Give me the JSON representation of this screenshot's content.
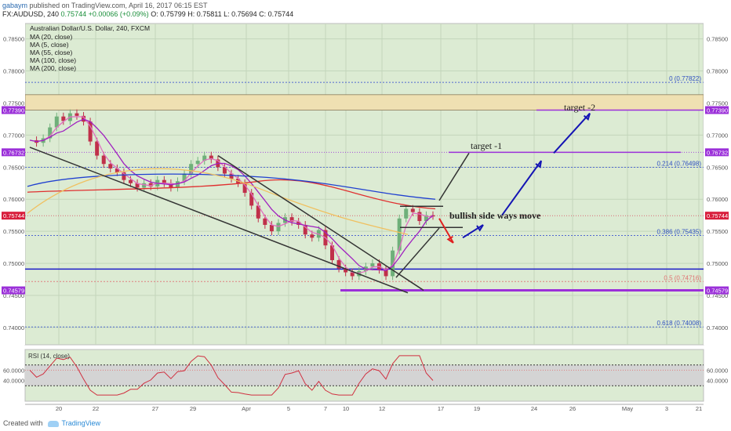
{
  "header": {
    "publisher": "gabaym",
    "published_text": "published on TradingView.com, April 16, 2017 06:15 EST",
    "ticker_line_prefix": "FX:AUDUSD, 240",
    "last_price": "0.75744",
    "change": "+0.00066 (+0.09%)",
    "ohlc": "O: 0.75799 H: 0.75811 L: 0.75694 C: 0.75744"
  },
  "legend": {
    "title": "Australian Dollar/U.S. Dollar, 240, FXCM",
    "items": [
      "MA (20, close)",
      "MA (5, close)",
      "MA (55, close)",
      "MA (100, close)",
      "MA (200, close)"
    ]
  },
  "colors": {
    "background": "#dcebd3",
    "up_candle": "#6fb07a",
    "down_candle": "#c0304a",
    "ma_red": "#e03030",
    "ma_blue": "#2040d0",
    "ma_orange": "#f0c060",
    "ma_purple": "#a020c0",
    "ma_pink": "#e070c0",
    "support_line": "#1c1cc8",
    "purple_level": "#9b30d9",
    "annotation_arrow": "#1414b4",
    "red_arrow": "#e02020",
    "price_tag": "#d81e3c",
    "rsi_line": "#d03040",
    "rsi_band": "#d4d4d4"
  },
  "chart_data": {
    "type": "candlestick",
    "symbol": "FX:AUDUSD",
    "timeframe": "240",
    "ylim": [
      0.7373,
      0.7874
    ],
    "y_ticks": [
      "0.78500",
      "0.78000",
      "0.77500",
      "0.77000",
      "0.76500",
      "0.76000",
      "0.75500",
      "0.75000",
      "0.74500",
      "0.74000"
    ],
    "x_ticks": [
      "20",
      "22",
      "27",
      "29",
      "Apr",
      "5",
      "7",
      "10",
      "12",
      "17",
      "19",
      "24",
      "26",
      "May",
      "3",
      "21"
    ],
    "last_price": "0.75744",
    "price_tags": [
      {
        "value": 0.7739,
        "label": "0.77390",
        "type": "purple"
      },
      {
        "value": 0.76732,
        "label": "0.76732",
        "type": "purple"
      },
      {
        "value": 0.75744,
        "label": "0.75744",
        "type": "red"
      },
      {
        "value": 0.74579,
        "label": "0.74579",
        "type": "purple"
      }
    ],
    "fib_levels": [
      {
        "value": 0.77822,
        "label": "0 (0.77822)"
      },
      {
        "value": 0.76498,
        "label": "0.214 (0.76498)"
      },
      {
        "value": 0.75435,
        "label": "0.386 (0.75435)"
      },
      {
        "value": 0.74716,
        "label": "0.5 (0.74716)"
      },
      {
        "value": 0.74008,
        "label": "0.618 (0.74008)"
      }
    ],
    "resistance_band": [
      0.7739,
      0.7763
    ],
    "support_line": 0.7491,
    "purple_level": 0.74579,
    "annotations": [
      "target -2",
      "target -1",
      "bullish side ways move"
    ],
    "candles_close_path": [
      0.7692,
      0.7688,
      0.7695,
      0.7712,
      0.7729,
      0.7722,
      0.7734,
      0.773,
      0.7721,
      0.769,
      0.7668,
      0.7655,
      0.7648,
      0.7642,
      0.763,
      0.7625,
      0.7618,
      0.7625,
      0.762,
      0.763,
      0.7625,
      0.7618,
      0.7628,
      0.764,
      0.7655,
      0.766,
      0.7668,
      0.7662,
      0.765,
      0.764,
      0.7632,
      0.7625,
      0.761,
      0.759,
      0.757,
      0.756,
      0.755,
      0.7563,
      0.7572,
      0.7565,
      0.756,
      0.7545,
      0.754,
      0.7552,
      0.7528,
      0.7505,
      0.7492,
      0.7486,
      0.748,
      0.7488,
      0.7495,
      0.75,
      0.749,
      0.748,
      0.752,
      0.757,
      0.7585,
      0.758,
      0.7566,
      0.7575,
      0.7574
    ],
    "rsi": {
      "label": "RSI (14, close)",
      "ticks": [
        "60.0000",
        "40.0000"
      ],
      "overbought": 70,
      "oversold": 30
    }
  },
  "footer": {
    "created_with": "Created with",
    "brand": "TradingView"
  }
}
